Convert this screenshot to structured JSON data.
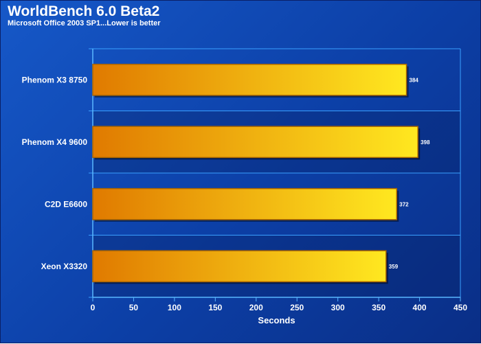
{
  "header": {
    "title": "WorldBench 6.0 Beta2",
    "subtitle": "Microsoft Office 2003 SP1...Lower is better"
  },
  "colors": {
    "background": "#1050c0",
    "bar_left": "#e07a00",
    "bar_right": "#ffe820",
    "bar_border": "#a86400",
    "grid": "#3aa0ff"
  },
  "chart_data": {
    "type": "bar",
    "orientation": "horizontal",
    "categories": [
      "Phenom X3 8750",
      "Phenom X4 9600",
      "C2D E6600",
      "Xeon X3320"
    ],
    "values": [
      384,
      398,
      372,
      359
    ],
    "data_labels": [
      "384",
      "398",
      "372",
      "359"
    ],
    "xlabel": "Seconds",
    "ylabel": "",
    "xlim": [
      0,
      450
    ],
    "xticks": [
      0,
      50,
      100,
      150,
      200,
      250,
      300,
      350,
      400,
      450
    ],
    "grid": true,
    "legend": "none"
  }
}
